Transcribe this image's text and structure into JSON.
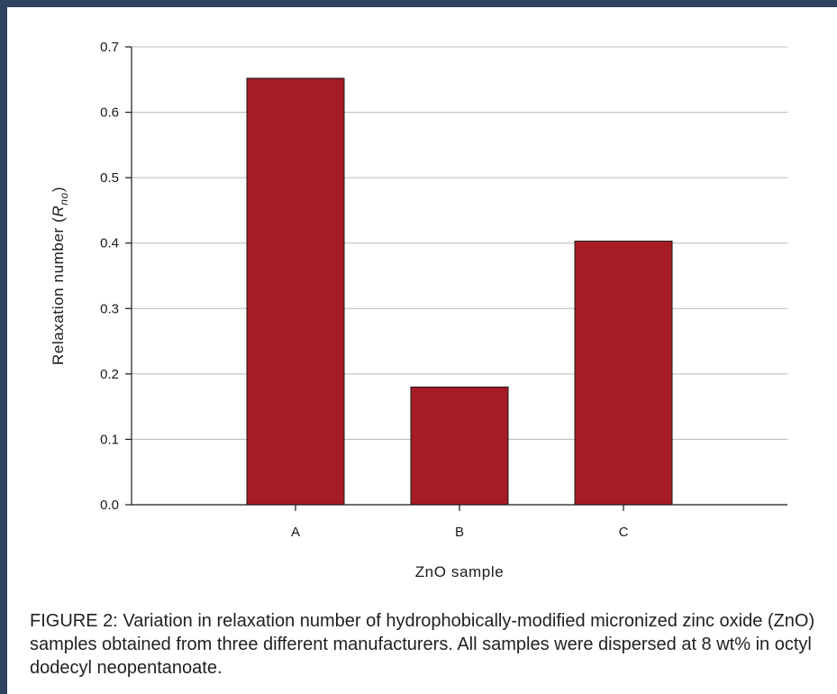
{
  "chart_data": {
    "type": "bar",
    "categories": [
      "A",
      "B",
      "C"
    ],
    "values": [
      0.652,
      0.18,
      0.403
    ],
    "xlabel": "ZnO sample",
    "ylabel_main": "Relaxation number (",
    "ylabel_var": "R",
    "ylabel_sub": "no",
    "ylabel_close": ")",
    "ylim": [
      0,
      0.7
    ],
    "yticks": [
      "0.0",
      "0.1",
      "0.2",
      "0.3",
      "0.4",
      "0.5",
      "0.6",
      "0.7"
    ],
    "grid": true,
    "colors": {
      "bar": "#a51c24",
      "frame": "#2f4460",
      "grid": "#b8b8b8"
    }
  },
  "caption": "FIGURE 2: Variation in relaxation number of hydrophobically-modified micronized zinc oxide (ZnO) samples obtained from three different manufacturers. All samples were dispersed at 8 wt% in octyl dodecyl neopentanoate."
}
